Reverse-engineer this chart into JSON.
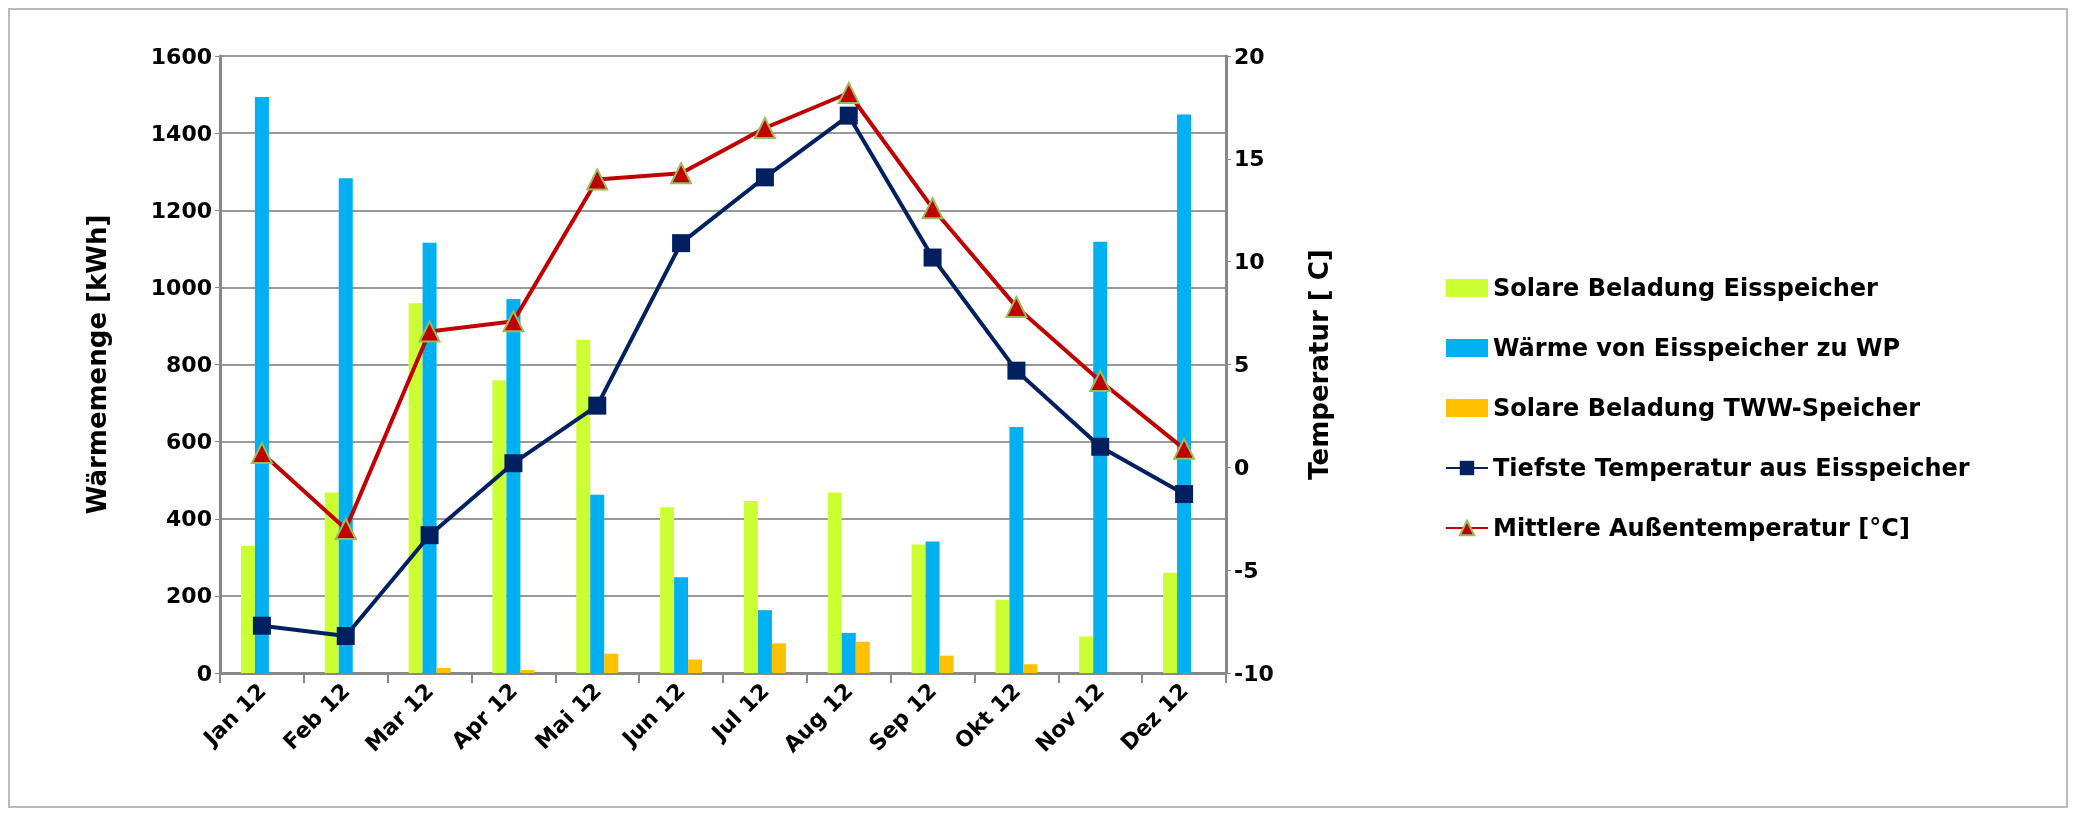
{
  "chart_data": {
    "type": "bar",
    "ylabel": "Wärmemenge [kWh]",
    "y2label": "Temperatur [ C]",
    "categories": [
      "Jan 12",
      "Feb 12",
      "Mar 12",
      "Apr 12",
      "Mai 12",
      "Jun 12",
      "Jul 12",
      "Aug 12",
      "Sep 12",
      "Okt 12",
      "Nov 12",
      "Dez 12"
    ],
    "series": [
      {
        "name": "Solare Beladung Eisspeicher",
        "color": "#ccff33",
        "values": [
          330,
          468,
          959,
          759,
          864,
          430,
          446,
          468,
          333,
          190,
          95,
          260
        ]
      },
      {
        "name": "Wärme von Eisspeicher zu WP",
        "color": "#00b0f0",
        "values": [
          1494,
          1283,
          1116,
          970,
          462,
          248,
          163,
          104,
          341,
          638,
          1118,
          1448
        ]
      },
      {
        "name": "Solare Beladung TWW-Speicher",
        "color": "#ffc000",
        "values": [
          0,
          0,
          13,
          8,
          50,
          35,
          77,
          81,
          45,
          23,
          0,
          0
        ]
      },
      {
        "name": "Tiefste Temperatur aus Eisspeicher",
        "type": "line",
        "axis": "y2",
        "marker": "square",
        "color": "#002060",
        "values": [
          -7.7,
          -8.2,
          -3.3,
          0.2,
          3.0,
          10.9,
          14.1,
          17.1,
          10.2,
          4.7,
          1.0,
          -1.3
        ]
      },
      {
        "name": "Mittlere Außentemperatur [°C]",
        "type": "line",
        "axis": "y2",
        "marker": "triangle",
        "color": "#c00000",
        "values": [
          0.7,
          -3.0,
          6.6,
          7.1,
          14.0,
          14.3,
          16.5,
          18.2,
          12.6,
          7.8,
          4.2,
          0.9
        ]
      }
    ],
    "ylim": [
      0,
      1600
    ],
    "yticks": [
      0,
      200,
      400,
      600,
      800,
      1000,
      1200,
      1400,
      1600
    ],
    "y2lim": [
      -10,
      20
    ],
    "y2ticks": [
      -10,
      -5,
      0,
      5,
      10,
      15,
      20
    ],
    "grid": "y",
    "legend": "right"
  }
}
